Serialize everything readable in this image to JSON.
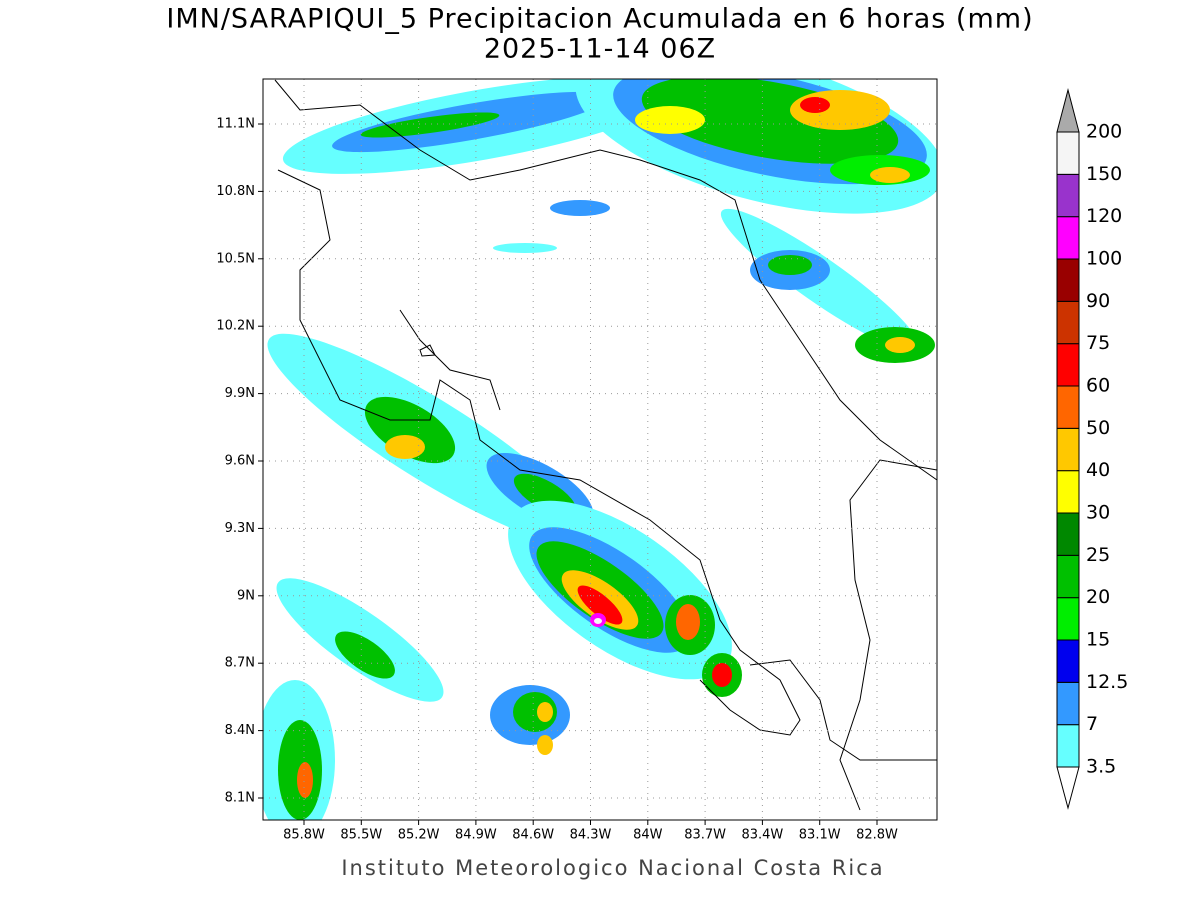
{
  "title": "IMN/SARAPIQUI_5 Precipitacion Acumulada en 6 horas (mm)",
  "subtitle": "2025-11-14 06Z",
  "lat_ticks": [
    "11.1N",
    "10.8N",
    "10.5N",
    "10.2N",
    "9.9N",
    "9.6N",
    "9.3N",
    "9N",
    "8.7N",
    "8.4N",
    "8.1N"
  ],
  "lon_ticks": [
    "85.8W",
    "85.5W",
    "85.2W",
    "84.9W",
    "84.6W",
    "84.3W",
    "84W",
    "83.7W",
    "83.4W",
    "83.1W",
    "82.8W"
  ],
  "colorbar": {
    "levels": [
      3.5,
      7,
      12.5,
      15,
      20,
      25,
      30,
      40,
      50,
      60,
      75,
      90,
      100,
      120,
      150,
      200
    ],
    "colors": [
      "#66ffff",
      "#3399ff",
      "#0000ee",
      "#00ee00",
      "#00c000",
      "#008800",
      "#ffff00",
      "#ffc800",
      "#ff6600",
      "#ff0000",
      "#cc3300",
      "#990000",
      "#ff00ff",
      "#9933cc",
      "#f5f5f5"
    ],
    "under_color": "#ffffff",
    "over_color": "#aaaaaa"
  },
  "footer": "Instituto Meteorologico Nacional Costa Rica"
}
